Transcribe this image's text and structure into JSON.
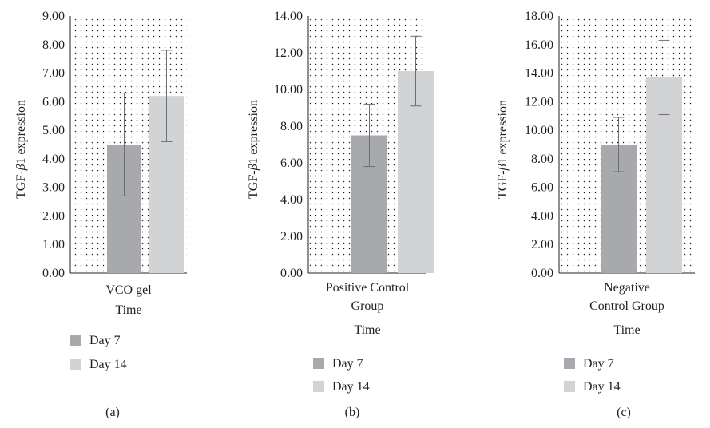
{
  "chart_data": [
    {
      "type": "bar",
      "panel_label": "(a)",
      "categories": [
        "VCO gel"
      ],
      "xlabel": "Time",
      "ylabel": "TGF-β1 expression",
      "ylim": [
        0,
        9
      ],
      "yticks": [
        "0.00",
        "1.00",
        "2.00",
        "3.00",
        "4.00",
        "5.00",
        "6.00",
        "7.00",
        "8.00",
        "9.00"
      ],
      "grid": "dotted",
      "legend_placement": "bottom",
      "series": [
        {
          "name": "Day 7",
          "color": "#a7a9ac",
          "values": [
            4.5
          ],
          "error": [
            1.8
          ]
        },
        {
          "name": "Day 14",
          "color": "#d1d3d4",
          "values": [
            6.2
          ],
          "error": [
            1.6
          ]
        }
      ]
    },
    {
      "type": "bar",
      "panel_label": "(b)",
      "categories": [
        "Positive Control Group"
      ],
      "xlabel": "Time",
      "ylabel": "TGF-β1 expression",
      "ylim": [
        0,
        14
      ],
      "yticks": [
        "0.00",
        "2.00",
        "4.00",
        "6.00",
        "8.00",
        "10.00",
        "12.00",
        "14.00"
      ],
      "grid": "dotted",
      "legend_placement": "bottom",
      "series": [
        {
          "name": "Day 7",
          "color": "#a7a9ac",
          "values": [
            7.5
          ],
          "error": [
            1.7
          ]
        },
        {
          "name": "Day 14",
          "color": "#d1d3d4",
          "values": [
            11.0
          ],
          "error": [
            1.9
          ]
        }
      ]
    },
    {
      "type": "bar",
      "panel_label": "(c)",
      "categories": [
        "Negative Control Group"
      ],
      "xlabel": "Time",
      "ylabel": "TGF-β1 expression",
      "ylim": [
        0,
        18
      ],
      "yticks": [
        "0.00",
        "2.00",
        "4.00",
        "6.00",
        "8.00",
        "10.00",
        "12.00",
        "14.00",
        "16.00",
        "18.00"
      ],
      "grid": "dotted",
      "legend_placement": "bottom",
      "series": [
        {
          "name": "Day 7",
          "color": "#a7a9ac",
          "values": [
            9.0
          ],
          "error": [
            1.9
          ]
        },
        {
          "name": "Day 14",
          "color": "#d1d3d4",
          "values": [
            13.7
          ],
          "error": [
            2.6
          ]
        }
      ]
    }
  ]
}
